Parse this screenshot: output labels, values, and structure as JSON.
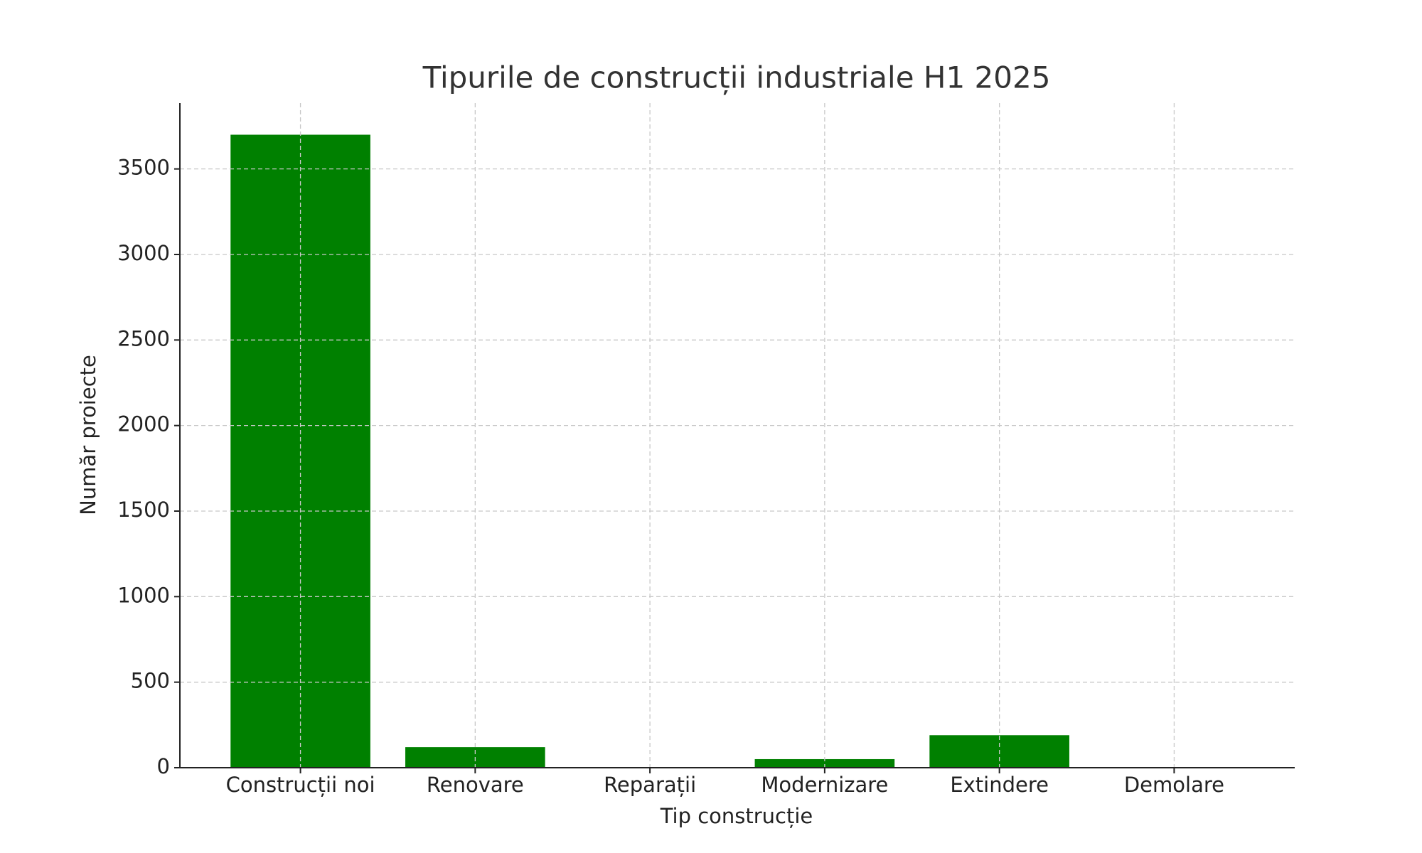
{
  "chart_data": {
    "type": "bar",
    "title": "Tipurile de construcții industriale H1 2025",
    "x_label": "Tip construcție",
    "y_label": "Număr proiecte",
    "categories": [
      "Construcții noi",
      "Renovare",
      "Reparații",
      "Modernizare",
      "Extindere",
      "Demolare"
    ],
    "values": [
      3700,
      120,
      0,
      50,
      190,
      0
    ],
    "color": "#008000",
    "ylim": [
      0,
      3885
    ],
    "yticks": [
      0,
      500,
      1000,
      1500,
      2000,
      2500,
      3000,
      3500
    ],
    "grid": true
  }
}
